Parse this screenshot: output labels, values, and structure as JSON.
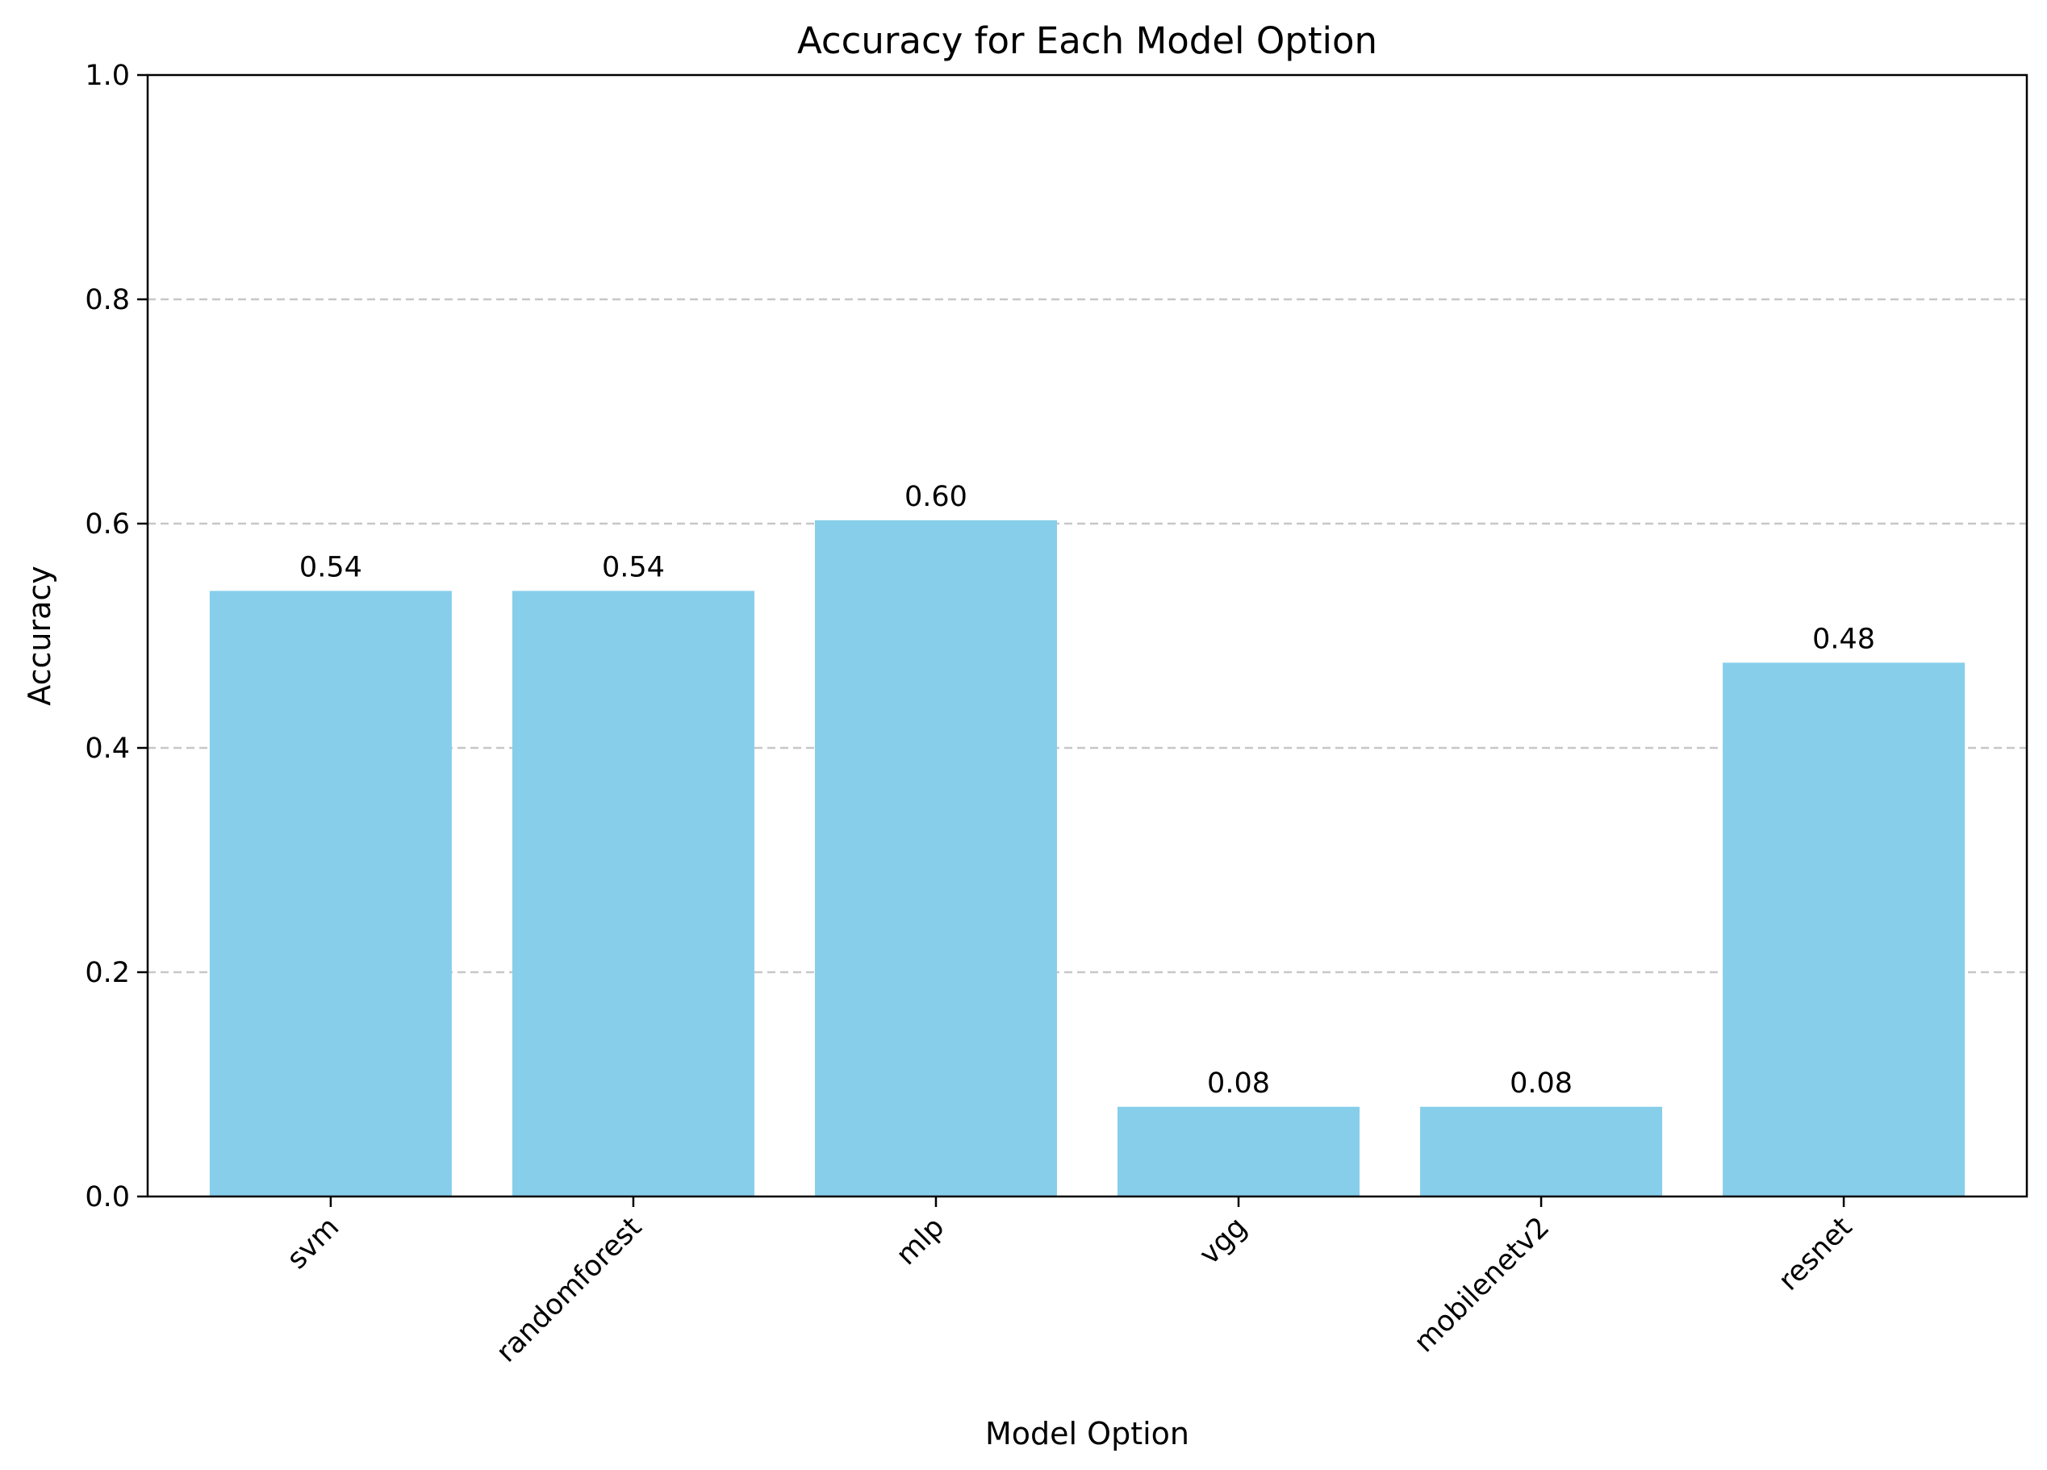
{
  "chart_data": {
    "type": "bar",
    "title": "Accuracy for Each Model Option",
    "xlabel": "Model Option",
    "ylabel": "Accuracy",
    "categories": [
      "svm",
      "randomforest",
      "mlp",
      "vgg",
      "mobilenetv2",
      "resnet"
    ],
    "values": [
      0.54,
      0.54,
      0.603,
      0.08,
      0.08,
      0.476
    ],
    "data_labels": [
      "0.54",
      "0.54",
      "0.60",
      "0.08",
      "0.08",
      "0.48"
    ],
    "ylim": [
      0,
      1.0
    ],
    "yticks": [
      0.0,
      0.2,
      0.4,
      0.6,
      0.8,
      1.0
    ],
    "ytick_labels": [
      "0.0",
      "0.2",
      "0.4",
      "0.6",
      "0.8",
      "1.0"
    ],
    "x_tick_rotation_deg": 45,
    "grid": "y-dashed",
    "legend": "none",
    "bar_color": "#87ceeb"
  }
}
